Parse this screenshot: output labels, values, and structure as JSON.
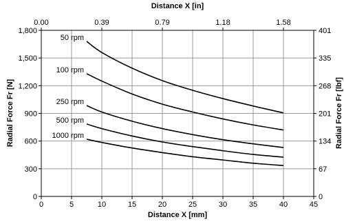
{
  "chart_data": {
    "type": "line",
    "x_bottom": {
      "label": "Distance X [mm]",
      "min": 0,
      "max": 45,
      "ticks": [
        0,
        5,
        10,
        15,
        20,
        25,
        30,
        35,
        40,
        45
      ]
    },
    "x_top": {
      "label": "Distance X [in]",
      "tick_labels": [
        "0.00",
        "0.39",
        "0.79",
        "1.18",
        "1.58"
      ]
    },
    "y_left": {
      "label": "Radial Force Fr [N]",
      "min": 0,
      "max": 1800,
      "tick_labels": [
        "0",
        "300",
        "600",
        "900",
        "1,200",
        "1,500",
        "1,800"
      ]
    },
    "y_right": {
      "label": "Radial Force Fr [lbf]",
      "tick_labels": [
        "0",
        "67",
        "134",
        "201",
        "268",
        "335",
        "401"
      ]
    },
    "grid": true,
    "series": [
      {
        "name": "50 rpm",
        "x": [
          7.5,
          10,
          15,
          20,
          25,
          30,
          35,
          40
        ],
        "y": [
          1680,
          1560,
          1390,
          1255,
          1150,
          1060,
          980,
          905
        ]
      },
      {
        "name": "100 rpm",
        "x": [
          7.5,
          10,
          15,
          20,
          25,
          30,
          35,
          40
        ],
        "y": [
          1330,
          1250,
          1110,
          1000,
          915,
          840,
          775,
          720
        ]
      },
      {
        "name": "250 rpm",
        "x": [
          7.5,
          10,
          15,
          20,
          25,
          30,
          35,
          40
        ],
        "y": [
          985,
          915,
          815,
          735,
          670,
          615,
          570,
          530
        ]
      },
      {
        "name": "500 rpm",
        "x": [
          7.5,
          10,
          15,
          20,
          25,
          30,
          35,
          40
        ],
        "y": [
          785,
          735,
          655,
          590,
          540,
          495,
          455,
          425
        ]
      },
      {
        "name": "1000 rpm",
        "x": [
          7.5,
          10,
          15,
          20,
          25,
          30,
          35,
          40
        ],
        "y": [
          620,
          585,
          525,
          475,
          430,
          395,
          360,
          335
        ]
      }
    ]
  }
}
